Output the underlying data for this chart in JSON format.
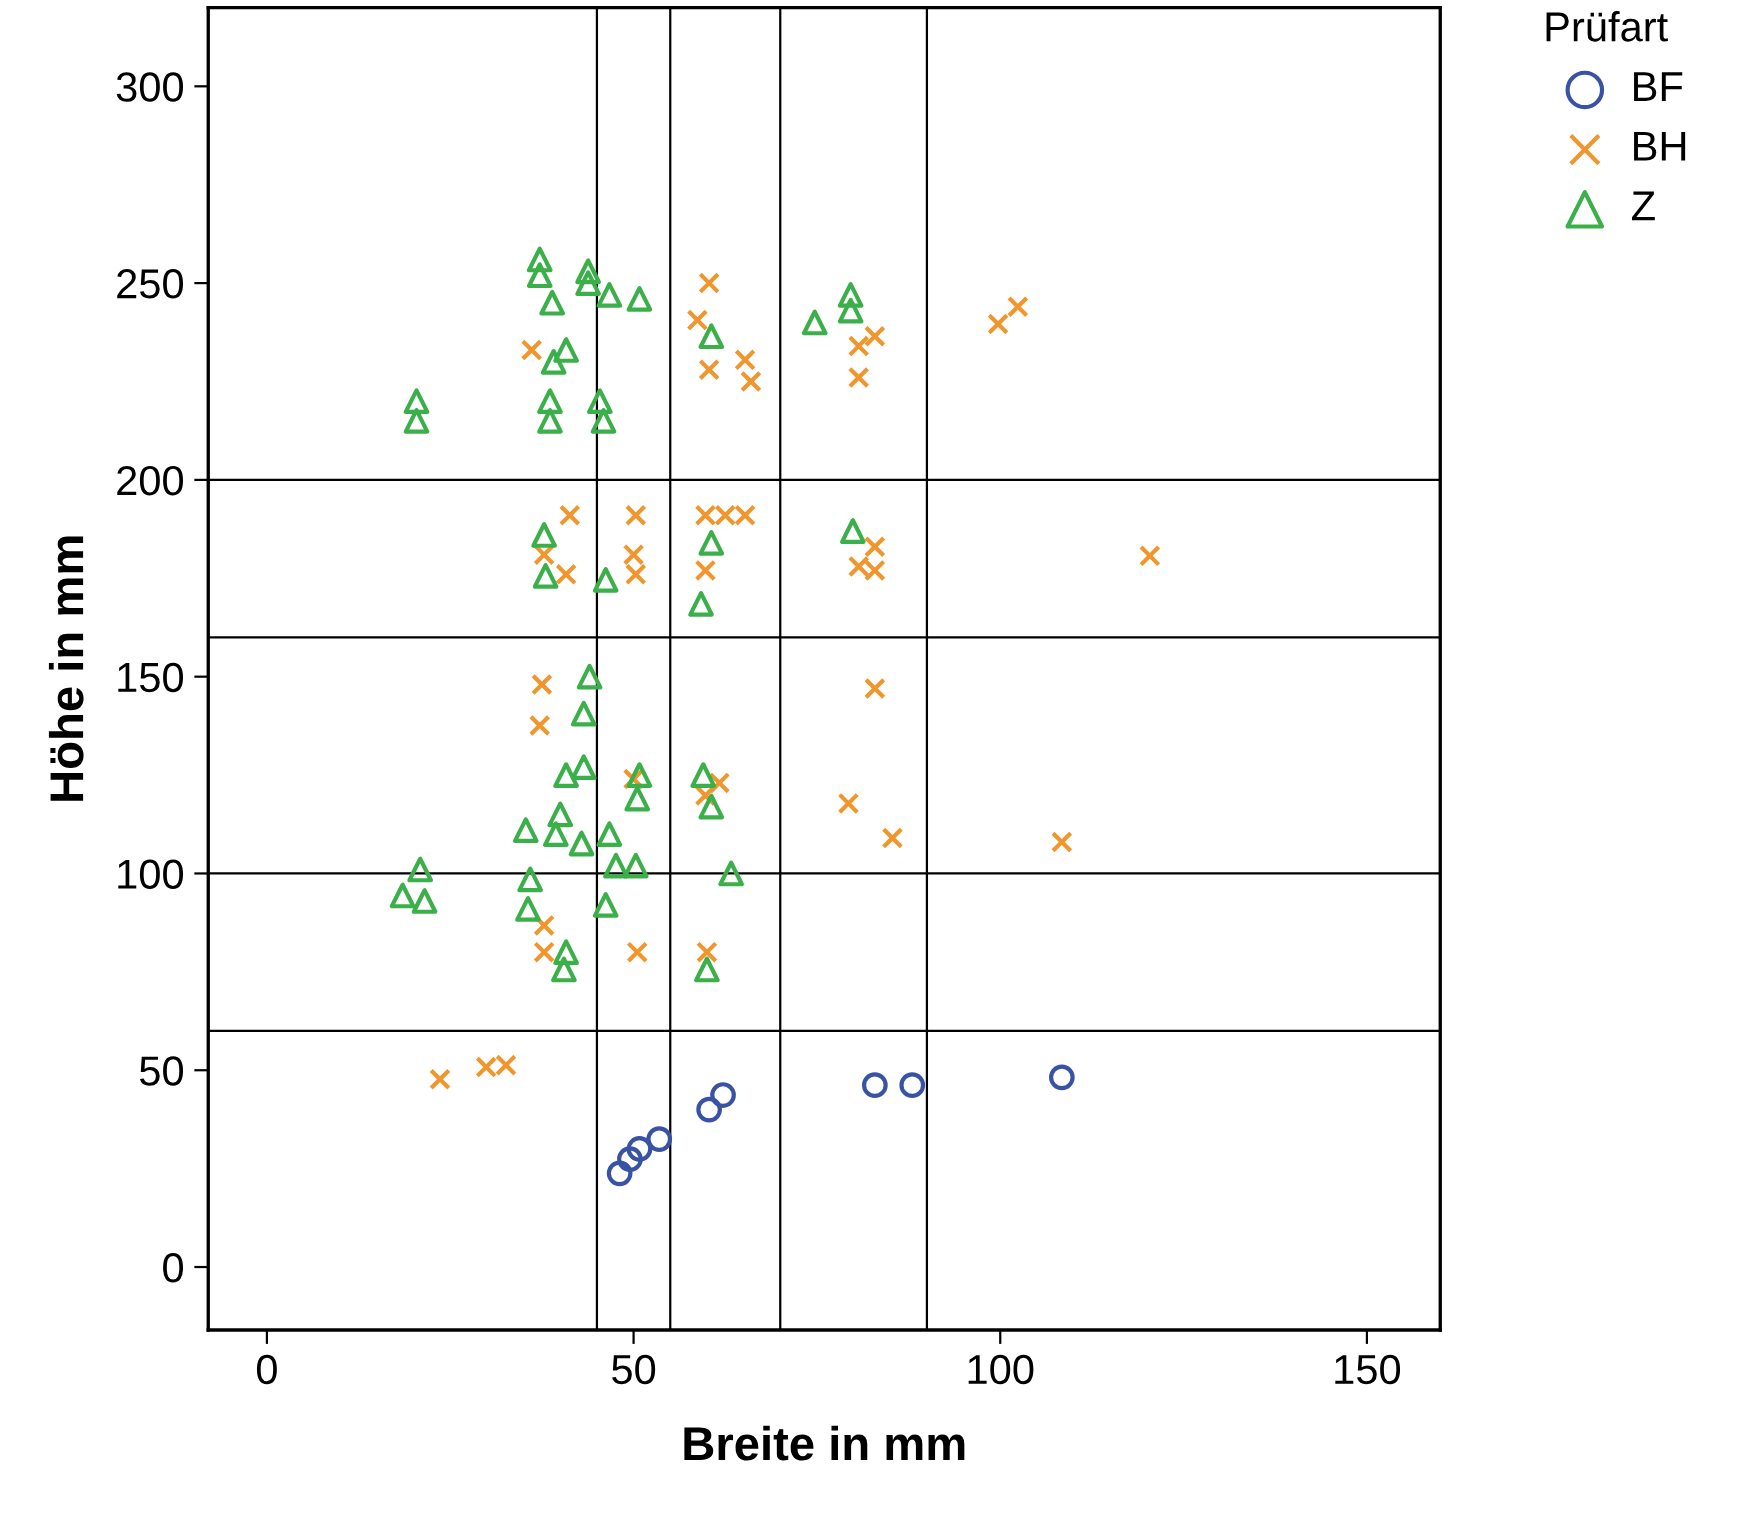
{
  "chart_data": {
    "type": "scatter",
    "xlabel": "Breite in mm",
    "ylabel": "Höhe in mm",
    "legend_title": "Prüfart",
    "legend": "top right",
    "grid": false,
    "xlim": [
      -8,
      160
    ],
    "ylim": [
      -16,
      320
    ],
    "xticks": [
      0,
      50,
      100,
      150
    ],
    "yticks": [
      0,
      50,
      100,
      150,
      200,
      250,
      300
    ],
    "ref_lines": [
      {
        "axis": "x",
        "value": 45
      },
      {
        "axis": "x",
        "value": 55
      },
      {
        "axis": "x",
        "value": 70
      },
      {
        "axis": "x",
        "value": 90
      },
      {
        "axis": "y",
        "value": 60
      },
      {
        "axis": "y",
        "value": 100
      },
      {
        "axis": "y",
        "value": 160
      },
      {
        "axis": "y",
        "value": 200
      }
    ],
    "series": [
      {
        "name": "BF",
        "color": "#3953a4",
        "marker": "circle",
        "x": [
          48.1,
          50.8,
          53.5,
          49.5,
          60.3,
          62.2,
          82.9,
          88,
          108.4
        ],
        "values": [
          23.8,
          30,
          32.5,
          27.4,
          40,
          43.7,
          46.2,
          46.2,
          48.2
        ]
      },
      {
        "name": "BH",
        "color": "#f0962d",
        "marker": "cross",
        "x": [
          60.3,
          58.7,
          60.3,
          65.2,
          66,
          80.7,
          80.7,
          82.9,
          36.1,
          102.4,
          99.7,
          41.3,
          37.8,
          40.8,
          50.3,
          50.3,
          50,
          62.5,
          59.8,
          65.2,
          59.8,
          80.7,
          82.9,
          82.9,
          120.4,
          37.5,
          37.2,
          82.9,
          79.3,
          85.3,
          108.4,
          61.7,
          59.8,
          50,
          37.8,
          37.8,
          50.5,
          60,
          23.6,
          29.9,
          32.6
        ],
        "values": [
          250,
          240.6,
          228,
          230.5,
          225,
          234,
          226,
          236.5,
          233,
          244,
          239.6,
          191,
          181,
          176,
          191,
          176,
          181,
          191,
          191,
          191,
          177,
          178,
          177,
          183,
          180.7,
          148,
          137.6,
          147,
          117.8,
          109,
          108,
          123,
          119.8,
          124,
          86.8,
          80,
          80,
          80,
          47.7,
          50.8,
          51.3
        ]
      },
      {
        "name": "Z",
        "color": "#3bb04a",
        "marker": "triangle",
        "x": [
          37.2,
          37.2,
          43.8,
          43.8,
          38.9,
          46.7,
          50.8,
          39.1,
          40.8,
          20.4,
          20.4,
          38.6,
          38.6,
          45.9,
          45.4,
          60.6,
          74.7,
          79.6,
          79.6,
          37.8,
          38,
          46.2,
          60.6,
          59.2,
          79.9,
          44,
          43.2,
          43.2,
          40.8,
          50.8,
          50.5,
          59.5,
          60.6,
          35.3,
          40,
          39.4,
          42.9,
          46.7,
          47.6,
          50.3,
          63.3,
          20.9,
          21.5,
          18.5,
          35.9,
          35.6,
          46.2,
          40.8,
          40.5,
          60
        ],
        "values": [
          256,
          252,
          253,
          250,
          245,
          247,
          246,
          230,
          233,
          215,
          220,
          215,
          220,
          215,
          220,
          236.5,
          240,
          247,
          243,
          186,
          175.6,
          174.6,
          184,
          168.5,
          187,
          150,
          140.6,
          127,
          125,
          125,
          119,
          125,
          117,
          111,
          115,
          110,
          107.6,
          110,
          102,
          102,
          100,
          101,
          93,
          94.4,
          98.5,
          91,
          92,
          80,
          75.6,
          75.6
        ]
      }
    ]
  }
}
